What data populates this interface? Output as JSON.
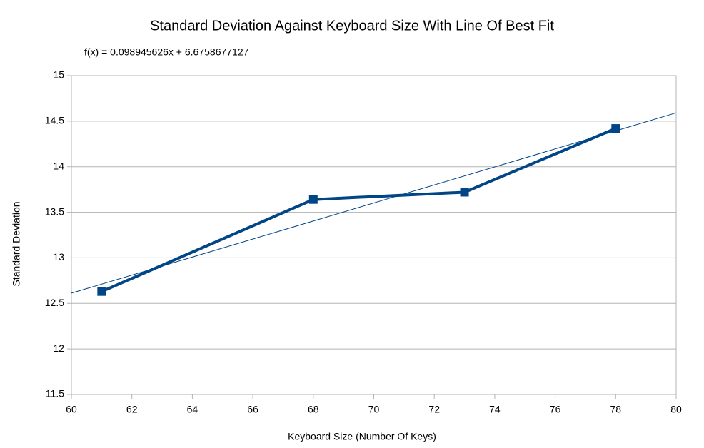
{
  "chart_data": {
    "type": "line",
    "title": "Standard Deviation Against Keyboard Size With Line Of Best Fit",
    "x_label": "Keyboard Size (Number Of Keys)",
    "y_label": "Standard Deviation",
    "x": [
      61,
      68,
      73,
      78
    ],
    "values": [
      12.63,
      13.64,
      13.72,
      14.42
    ],
    "color": "#004586",
    "trendline": {
      "label": "f(x) = 0.098945626x + 6.6758677127",
      "slope": 0.098945626,
      "intercept": 6.6758677127
    },
    "xlim": [
      60,
      80
    ],
    "xticks": [
      60,
      62,
      64,
      66,
      68,
      70,
      72,
      74,
      76,
      78,
      80
    ],
    "ylim": [
      11.5,
      15
    ],
    "yticks": [
      11.5,
      12,
      12.5,
      13,
      13.5,
      14,
      14.5,
      15
    ],
    "grid": true
  }
}
